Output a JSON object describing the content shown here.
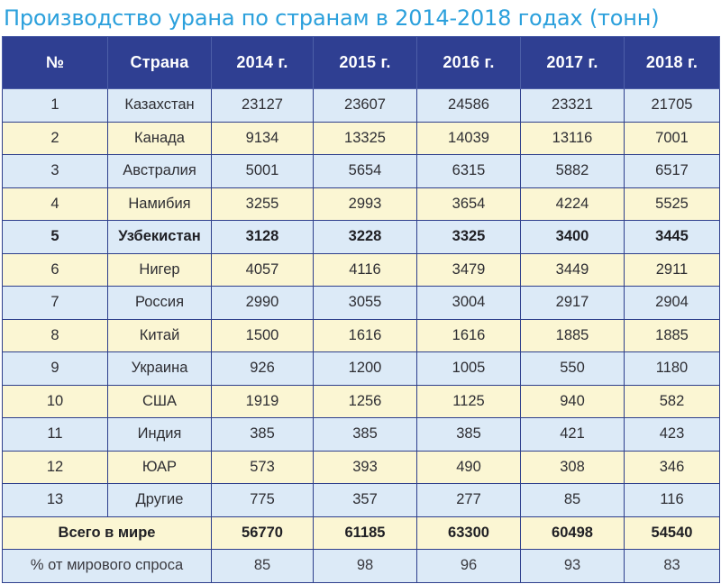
{
  "title": "Производство урана по странам в 2014-2018 годах (тонн)",
  "header": [
    "№",
    "Страна",
    "2014 г.",
    "2015 г.",
    "2016 г.",
    "2017 г.",
    "2018 г."
  ],
  "rows": [
    [
      "1",
      "Казахстан",
      "23127",
      "23607",
      "24586",
      "23321",
      "21705"
    ],
    [
      "2",
      "Канада",
      "9134",
      "13325",
      "14039",
      "13116",
      "7001"
    ],
    [
      "3",
      "Австралия",
      "5001",
      "5654",
      "6315",
      "5882",
      "6517"
    ],
    [
      "4",
      "Намибия",
      "3255",
      "2993",
      "3654",
      "4224",
      "5525"
    ],
    [
      "5",
      "Узбекистан",
      "3128",
      "3228",
      "3325",
      "3400",
      "3445"
    ],
    [
      "6",
      "Нигер",
      "4057",
      "4116",
      "3479",
      "3449",
      "2911"
    ],
    [
      "7",
      "Россия",
      "2990",
      "3055",
      "3004",
      "2917",
      "2904"
    ],
    [
      "8",
      "Китай",
      "1500",
      "1616",
      "1616",
      "1885",
      "1885"
    ],
    [
      "9",
      "Украина",
      "926",
      "1200",
      "1005",
      "550",
      "1180"
    ],
    [
      "10",
      "США",
      "1919",
      "1256",
      "1125",
      "940",
      "582"
    ],
    [
      "11",
      "Индия",
      "385",
      "385",
      "385",
      "421",
      "423"
    ],
    [
      "12",
      "ЮАР",
      "573",
      "393",
      "490",
      "308",
      "346"
    ],
    [
      "13",
      "Другие",
      "775",
      "357",
      "277",
      "85",
      "116"
    ]
  ],
  "total": {
    "label": "Всего в мире",
    "values": [
      "56770",
      "61185",
      "63300",
      "60498",
      "54540"
    ]
  },
  "share": {
    "label": "% от мирового спроса",
    "values": [
      "85",
      "98",
      "96",
      "93",
      "83"
    ]
  },
  "colors": {
    "header_bg": "#2f3f92",
    "row_blue": "#dceaf7",
    "row_yellow": "#fbf6d3",
    "title": "#2ba0dc"
  }
}
